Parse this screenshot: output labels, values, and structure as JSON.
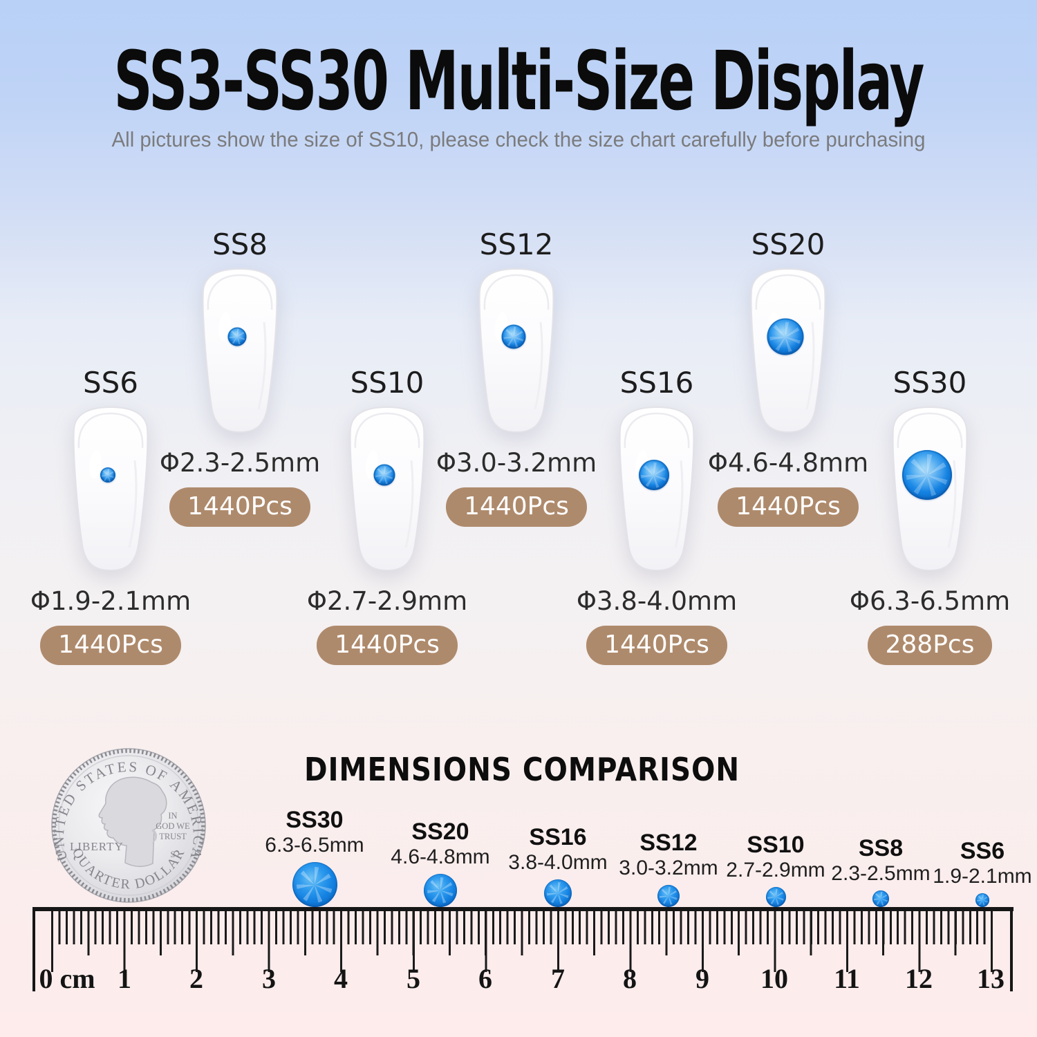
{
  "page": {
    "title": "SS3-SS30 Multi-Size Display",
    "subtitle": "All pictures show the size of SS10, please check the size chart carefully  before purchasing"
  },
  "cards": [
    {
      "name": "SS8",
      "size_label": "Φ2.3-2.5mm",
      "qty": "1440Pcs",
      "mm_min": 2.3,
      "mm_max": 2.5
    },
    {
      "name": "SS12",
      "size_label": "Φ3.0-3.2mm",
      "qty": "1440Pcs",
      "mm_min": 3.0,
      "mm_max": 3.2
    },
    {
      "name": "SS20",
      "size_label": "Φ4.6-4.8mm",
      "qty": "1440Pcs",
      "mm_min": 4.6,
      "mm_max": 4.8
    },
    {
      "name": "SS6",
      "size_label": "Φ1.9-2.1mm",
      "qty": "1440Pcs",
      "mm_min": 1.9,
      "mm_max": 2.1
    },
    {
      "name": "SS10",
      "size_label": "Φ2.7-2.9mm",
      "qty": "1440Pcs",
      "mm_min": 2.7,
      "mm_max": 2.9
    },
    {
      "name": "SS16",
      "size_label": "Φ3.8-4.0mm",
      "qty": "1440Pcs",
      "mm_min": 3.8,
      "mm_max": 4.0
    },
    {
      "name": "SS30",
      "size_label": "Φ6.3-6.5mm",
      "qty": "288Pcs",
      "mm_min": 6.3,
      "mm_max": 6.5
    }
  ],
  "comparison": {
    "heading": "DIMENSIONS COMPARISON",
    "coin": {
      "top_text": "UNITED STATES OF AMERICA",
      "left_text": "LIBERTY",
      "motto_line1": "IN",
      "motto_line2": "GOD WE",
      "motto_line3": "TRUST",
      "mint_mark": "S",
      "bottom_text": "QUARTER DOLLAR"
    },
    "dots": [
      {
        "name": "SS30",
        "range": "6.3-6.5mm",
        "mm_min": 6.3,
        "mm_max": 6.5
      },
      {
        "name": "SS20",
        "range": "4.6-4.8mm",
        "mm_min": 4.6,
        "mm_max": 4.8
      },
      {
        "name": "SS16",
        "range": "3.8-4.0mm",
        "mm_min": 3.8,
        "mm_max": 4.0
      },
      {
        "name": "SS12",
        "range": "3.0-3.2mm",
        "mm_min": 3.0,
        "mm_max": 3.2
      },
      {
        "name": "SS10",
        "range": "2.7-2.9mm",
        "mm_min": 2.7,
        "mm_max": 2.9
      },
      {
        "name": "SS8",
        "range": "2.3-2.5mm",
        "mm_min": 2.3,
        "mm_max": 2.5
      },
      {
        "name": "SS6",
        "range": "1.9-2.1mm",
        "mm_min": 1.9,
        "mm_max": 2.1
      }
    ],
    "ruler": {
      "labels": [
        "0 cm",
        "1",
        "2",
        "3",
        "4",
        "5",
        "6",
        "7",
        "8",
        "9",
        "10",
        "11",
        "12",
        "13"
      ]
    }
  },
  "colors": {
    "gem": "#1482e2",
    "badge": "#ae8a6c",
    "title": "#0b0b0b"
  }
}
